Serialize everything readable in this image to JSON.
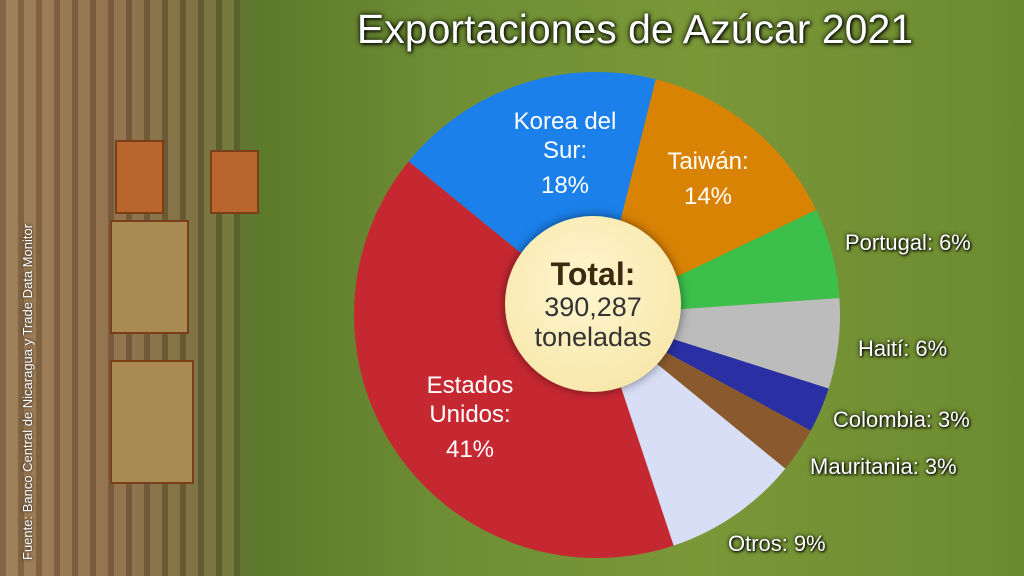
{
  "chart_data": {
    "type": "pie",
    "title": "Exportaciones de Azúcar 2021",
    "source": "Fuente: Banco Central de Nicaragua y Trade Data Monitor",
    "categories": [
      "Estados Unidos:",
      "Korea del Sur:",
      "Taiwán:",
      "Portugal:",
      "Haití:",
      "Colombia:",
      "Mauritania:",
      "Otros:"
    ],
    "values": [
      41,
      18,
      14,
      6,
      6,
      3,
      3,
      9
    ],
    "value_labels": [
      "41%",
      "18%",
      "14%",
      "6%",
      "6%",
      "3%",
      "3%",
      "9%"
    ],
    "colors": [
      "#c62832",
      "#1b80ea",
      "#d98305",
      "#3dbf4c",
      "#bcbcbc",
      "#2a30a3",
      "#8a5a2e",
      "#d8def6"
    ],
    "total_label": "Total:",
    "total": {
      "value": 390287,
      "label": "390,287"
    },
    "total_unit": "toneladas"
  }
}
